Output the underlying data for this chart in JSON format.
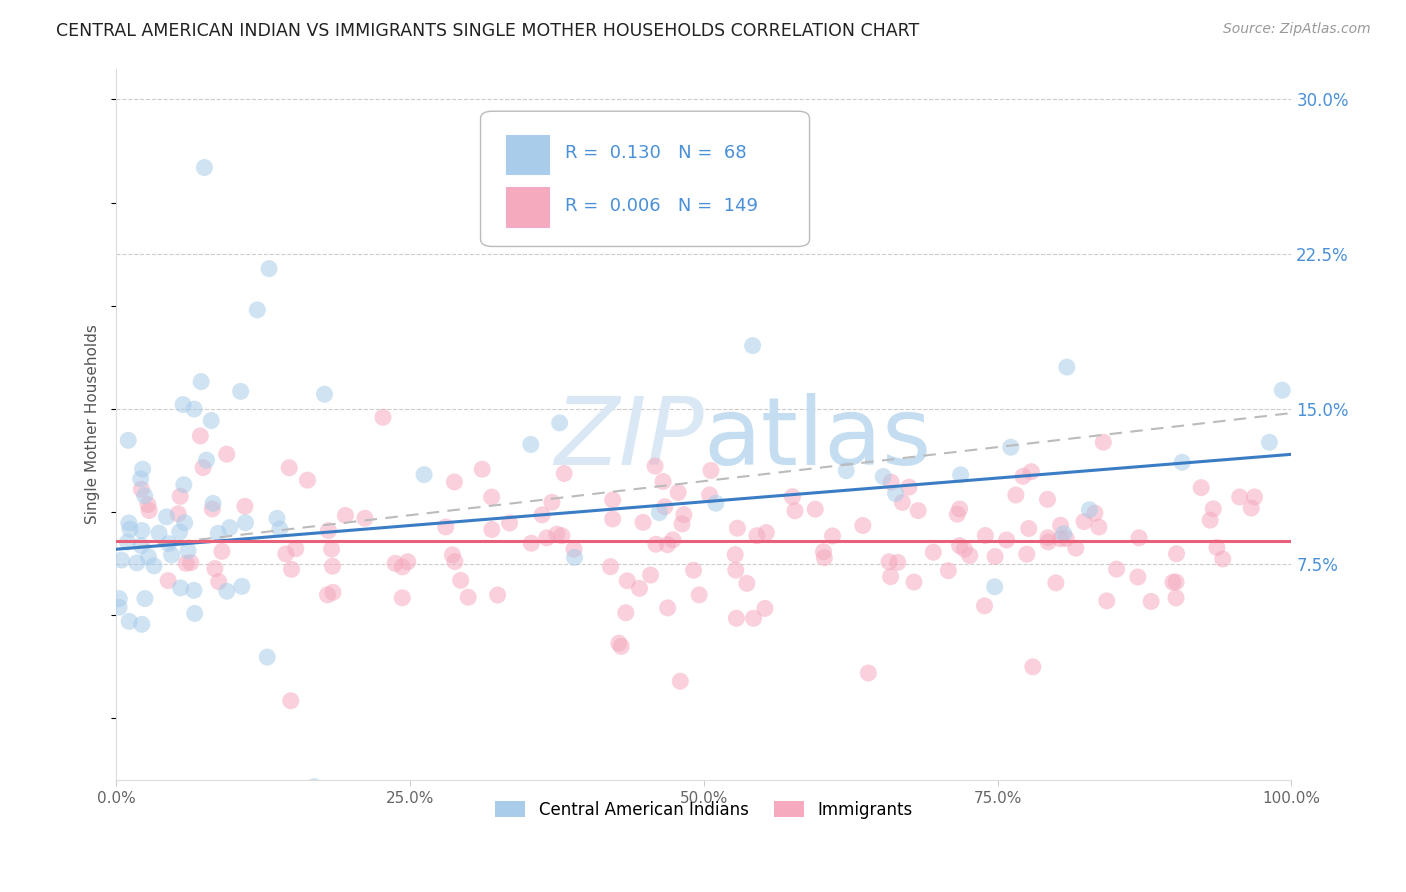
{
  "title": "CENTRAL AMERICAN INDIAN VS IMMIGRANTS SINGLE MOTHER HOUSEHOLDS CORRELATION CHART",
  "source": "Source: ZipAtlas.com",
  "ylabel": "Single Mother Households",
  "xlim": [
    0,
    1.0
  ],
  "ylim": [
    -0.03,
    0.315
  ],
  "xticks": [
    0.0,
    0.25,
    0.5,
    0.75,
    1.0
  ],
  "xticklabels": [
    "0.0%",
    "25.0%",
    "50.0%",
    "75.0%",
    "100.0%"
  ],
  "yticks": [
    0.075,
    0.15,
    0.225,
    0.3
  ],
  "yticklabels": [
    "7.5%",
    "15.0%",
    "22.5%",
    "30.0%"
  ],
  "legend_labels": [
    "Central American Indians",
    "Immigrants"
  ],
  "legend_R": [
    0.13,
    0.006
  ],
  "legend_N": [
    68,
    149
  ],
  "blue_color": "#A8CCEA",
  "pink_color": "#F5AABE",
  "blue_line_color": "#3B7DC4",
  "pink_line_color": "#E8607A",
  "dashed_line_color": "#BBBBBB",
  "tick_label_color": "#4A90D9",
  "watermark_color": "#DAE8F5",
  "blue_line_start_y": 0.082,
  "blue_line_end_y": 0.128,
  "pink_line_y": 0.086,
  "dash_line_start_y": 0.082,
  "dash_line_end_y": 0.148
}
